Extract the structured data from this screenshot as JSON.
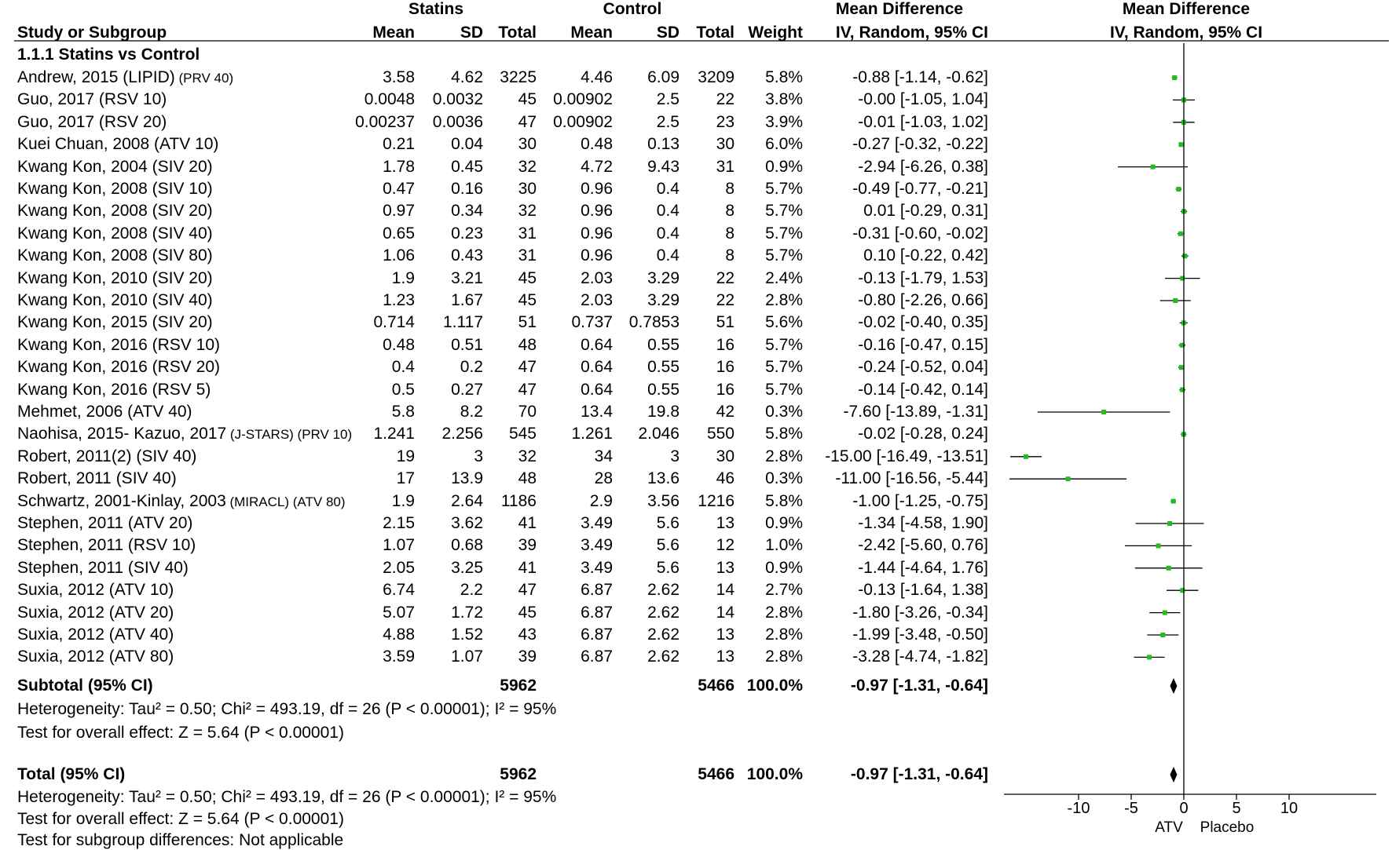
{
  "chart_data": {
    "type": "forest",
    "headers": {
      "statins_group": "Statins",
      "control_group": "Control",
      "md_group": "Mean Difference",
      "md_plot_group": "Mean Difference",
      "study": "Study or Subgroup",
      "mean": "Mean",
      "sd": "SD",
      "total": "Total",
      "weight": "Weight",
      "ci": "IV, Random, 95% CI",
      "plot_ci": "IV, Random, 95% CI"
    },
    "subgroup_title": "1.1.1 Statins vs Control",
    "studies": [
      {
        "name": "Andrew, 2015 (LIPID)",
        "tag": "(PRV 40)",
        "s_mean": "3.58",
        "s_sd": "4.62",
        "s_total": "3225",
        "c_mean": "4.46",
        "c_sd": "6.09",
        "c_total": "3209",
        "weight": "5.8%",
        "ci_text": "-0.88 [-1.14, -0.62]",
        "md": -0.88,
        "lo": -1.14,
        "hi": -0.62
      },
      {
        "name": "Guo, 2017 (RSV 10)",
        "tag": "",
        "s_mean": "0.0048",
        "s_sd": "0.0032",
        "s_total": "45",
        "c_mean": "0.00902",
        "c_sd": "2.5",
        "c_total": "22",
        "weight": "3.8%",
        "ci_text": "-0.00 [-1.05, 1.04]",
        "md": 0.0,
        "lo": -1.05,
        "hi": 1.04
      },
      {
        "name": "Guo, 2017 (RSV 20)",
        "tag": "",
        "s_mean": "0.00237",
        "s_sd": "0.0036",
        "s_total": "47",
        "c_mean": "0.00902",
        "c_sd": "2.5",
        "c_total": "23",
        "weight": "3.9%",
        "ci_text": "-0.01 [-1.03, 1.02]",
        "md": -0.01,
        "lo": -1.03,
        "hi": 1.02
      },
      {
        "name": "Kuei Chuan, 2008 (ATV 10)",
        "tag": "",
        "s_mean": "0.21",
        "s_sd": "0.04",
        "s_total": "30",
        "c_mean": "0.48",
        "c_sd": "0.13",
        "c_total": "30",
        "weight": "6.0%",
        "ci_text": "-0.27 [-0.32, -0.22]",
        "md": -0.27,
        "lo": -0.32,
        "hi": -0.22
      },
      {
        "name": "Kwang Kon, 2004 (SIV 20)",
        "tag": "",
        "s_mean": "1.78",
        "s_sd": "0.45",
        "s_total": "32",
        "c_mean": "4.72",
        "c_sd": "9.43",
        "c_total": "31",
        "weight": "0.9%",
        "ci_text": "-2.94 [-6.26, 0.38]",
        "md": -2.94,
        "lo": -6.26,
        "hi": 0.38
      },
      {
        "name": "Kwang Kon, 2008 (SIV 10)",
        "tag": "",
        "s_mean": "0.47",
        "s_sd": "0.16",
        "s_total": "30",
        "c_mean": "0.96",
        "c_sd": "0.4",
        "c_total": "8",
        "weight": "5.7%",
        "ci_text": "-0.49 [-0.77, -0.21]",
        "md": -0.49,
        "lo": -0.77,
        "hi": -0.21
      },
      {
        "name": "Kwang Kon, 2008 (SIV 20)",
        "tag": "",
        "s_mean": "0.97",
        "s_sd": "0.34",
        "s_total": "32",
        "c_mean": "0.96",
        "c_sd": "0.4",
        "c_total": "8",
        "weight": "5.7%",
        "ci_text": "0.01 [-0.29, 0.31]",
        "md": 0.01,
        "lo": -0.29,
        "hi": 0.31
      },
      {
        "name": "Kwang Kon, 2008 (SIV 40)",
        "tag": "",
        "s_mean": "0.65",
        "s_sd": "0.23",
        "s_total": "31",
        "c_mean": "0.96",
        "c_sd": "0.4",
        "c_total": "8",
        "weight": "5.7%",
        "ci_text": "-0.31 [-0.60, -0.02]",
        "md": -0.31,
        "lo": -0.6,
        "hi": -0.02
      },
      {
        "name": "Kwang Kon, 2008 (SIV 80)",
        "tag": "",
        "s_mean": "1.06",
        "s_sd": "0.43",
        "s_total": "31",
        "c_mean": "0.96",
        "c_sd": "0.4",
        "c_total": "8",
        "weight": "5.7%",
        "ci_text": "0.10 [-0.22, 0.42]",
        "md": 0.1,
        "lo": -0.22,
        "hi": 0.42
      },
      {
        "name": "Kwang Kon, 2010 (SIV 20)",
        "tag": "",
        "s_mean": "1.9",
        "s_sd": "3.21",
        "s_total": "45",
        "c_mean": "2.03",
        "c_sd": "3.29",
        "c_total": "22",
        "weight": "2.4%",
        "ci_text": "-0.13 [-1.79, 1.53]",
        "md": -0.13,
        "lo": -1.79,
        "hi": 1.53
      },
      {
        "name": "Kwang Kon, 2010 (SIV 40)",
        "tag": "",
        "s_mean": "1.23",
        "s_sd": "1.67",
        "s_total": "45",
        "c_mean": "2.03",
        "c_sd": "3.29",
        "c_total": "22",
        "weight": "2.8%",
        "ci_text": "-0.80 [-2.26, 0.66]",
        "md": -0.8,
        "lo": -2.26,
        "hi": 0.66
      },
      {
        "name": "Kwang Kon, 2015 (SIV 20)",
        "tag": "",
        "s_mean": "0.714",
        "s_sd": "1.117",
        "s_total": "51",
        "c_mean": "0.737",
        "c_sd": "0.7853",
        "c_total": "51",
        "weight": "5.6%",
        "ci_text": "-0.02 [-0.40, 0.35]",
        "md": -0.02,
        "lo": -0.4,
        "hi": 0.35
      },
      {
        "name": "Kwang Kon, 2016 (RSV 10)",
        "tag": "",
        "s_mean": "0.48",
        "s_sd": "0.51",
        "s_total": "48",
        "c_mean": "0.64",
        "c_sd": "0.55",
        "c_total": "16",
        "weight": "5.7%",
        "ci_text": "-0.16 [-0.47, 0.15]",
        "md": -0.16,
        "lo": -0.47,
        "hi": 0.15
      },
      {
        "name": "Kwang Kon, 2016 (RSV 20)",
        "tag": "",
        "s_mean": "0.4",
        "s_sd": "0.2",
        "s_total": "47",
        "c_mean": "0.64",
        "c_sd": "0.55",
        "c_total": "16",
        "weight": "5.7%",
        "ci_text": "-0.24 [-0.52, 0.04]",
        "md": -0.24,
        "lo": -0.52,
        "hi": 0.04
      },
      {
        "name": "Kwang Kon, 2016 (RSV 5)",
        "tag": "",
        "s_mean": "0.5",
        "s_sd": "0.27",
        "s_total": "47",
        "c_mean": "0.64",
        "c_sd": "0.55",
        "c_total": "16",
        "weight": "5.7%",
        "ci_text": "-0.14 [-0.42, 0.14]",
        "md": -0.14,
        "lo": -0.42,
        "hi": 0.14
      },
      {
        "name": "Mehmet, 2006 (ATV 40)",
        "tag": "",
        "s_mean": "5.8",
        "s_sd": "8.2",
        "s_total": "70",
        "c_mean": "13.4",
        "c_sd": "19.8",
        "c_total": "42",
        "weight": "0.3%",
        "ci_text": "-7.60 [-13.89, -1.31]",
        "md": -7.6,
        "lo": -13.89,
        "hi": -1.31
      },
      {
        "name": "Naohisa, 2015- Kazuo, 2017",
        "tag": "(J-STARS) (PRV 10)",
        "s_mean": "1.241",
        "s_sd": "2.256",
        "s_total": "545",
        "c_mean": "1.261",
        "c_sd": "2.046",
        "c_total": "550",
        "weight": "5.8%",
        "ci_text": "-0.02 [-0.28, 0.24]",
        "md": -0.02,
        "lo": -0.28,
        "hi": 0.24
      },
      {
        "name": "Robert, 2011(2) (SIV 40)",
        "tag": "",
        "s_mean": "19",
        "s_sd": "3",
        "s_total": "32",
        "c_mean": "34",
        "c_sd": "3",
        "c_total": "30",
        "weight": "2.8%",
        "ci_text": "-15.00 [-16.49, -13.51]",
        "md": -15.0,
        "lo": -16.49,
        "hi": -13.51
      },
      {
        "name": "Robert, 2011 (SIV 40)",
        "tag": "",
        "s_mean": "17",
        "s_sd": "13.9",
        "s_total": "48",
        "c_mean": "28",
        "c_sd": "13.6",
        "c_total": "46",
        "weight": "0.3%",
        "ci_text": "-11.00 [-16.56, -5.44]",
        "md": -11.0,
        "lo": -16.56,
        "hi": -5.44
      },
      {
        "name": "Schwartz, 2001-Kinlay, 2003",
        "tag": "(MIRACL) (ATV 80)",
        "s_mean": "1.9",
        "s_sd": "2.64",
        "s_total": "1186",
        "c_mean": "2.9",
        "c_sd": "3.56",
        "c_total": "1216",
        "weight": "5.8%",
        "ci_text": "-1.00 [-1.25, -0.75]",
        "md": -1.0,
        "lo": -1.25,
        "hi": -0.75
      },
      {
        "name": "Stephen, 2011 (ATV 20)",
        "tag": "",
        "s_mean": "2.15",
        "s_sd": "3.62",
        "s_total": "41",
        "c_mean": "3.49",
        "c_sd": "5.6",
        "c_total": "13",
        "weight": "0.9%",
        "ci_text": "-1.34 [-4.58, 1.90]",
        "md": -1.34,
        "lo": -4.58,
        "hi": 1.9
      },
      {
        "name": "Stephen, 2011 (RSV 10)",
        "tag": "",
        "s_mean": "1.07",
        "s_sd": "0.68",
        "s_total": "39",
        "c_mean": "3.49",
        "c_sd": "5.6",
        "c_total": "12",
        "weight": "1.0%",
        "ci_text": "-2.42 [-5.60, 0.76]",
        "md": -2.42,
        "lo": -5.6,
        "hi": 0.76
      },
      {
        "name": "Stephen, 2011 (SIV 40)",
        "tag": "",
        "s_mean": "2.05",
        "s_sd": "3.25",
        "s_total": "41",
        "c_mean": "3.49",
        "c_sd": "5.6",
        "c_total": "13",
        "weight": "0.9%",
        "ci_text": "-1.44 [-4.64, 1.76]",
        "md": -1.44,
        "lo": -4.64,
        "hi": 1.76
      },
      {
        "name": "Suxia, 2012 (ATV 10)",
        "tag": "",
        "s_mean": "6.74",
        "s_sd": "2.2",
        "s_total": "47",
        "c_mean": "6.87",
        "c_sd": "2.62",
        "c_total": "14",
        "weight": "2.7%",
        "ci_text": "-0.13 [-1.64, 1.38]",
        "md": -0.13,
        "lo": -1.64,
        "hi": 1.38
      },
      {
        "name": "Suxia, 2012 (ATV 20)",
        "tag": "",
        "s_mean": "5.07",
        "s_sd": "1.72",
        "s_total": "45",
        "c_mean": "6.87",
        "c_sd": "2.62",
        "c_total": "14",
        "weight": "2.8%",
        "ci_text": "-1.80 [-3.26, -0.34]",
        "md": -1.8,
        "lo": -3.26,
        "hi": -0.34
      },
      {
        "name": "Suxia, 2012 (ATV 40)",
        "tag": "",
        "s_mean": "4.88",
        "s_sd": "1.52",
        "s_total": "43",
        "c_mean": "6.87",
        "c_sd": "2.62",
        "c_total": "13",
        "weight": "2.8%",
        "ci_text": "-1.99 [-3.48, -0.50]",
        "md": -1.99,
        "lo": -3.48,
        "hi": -0.5
      },
      {
        "name": "Suxia, 2012 (ATV 80)",
        "tag": "",
        "s_mean": "3.59",
        "s_sd": "1.07",
        "s_total": "39",
        "c_mean": "6.87",
        "c_sd": "2.62",
        "c_total": "13",
        "weight": "2.8%",
        "ci_text": "-3.28 [-4.74, -1.82]",
        "md": -3.28,
        "lo": -4.74,
        "hi": -1.82
      }
    ],
    "subtotal": {
      "label": "Subtotal (95% CI)",
      "s_total": "5962",
      "c_total": "5466",
      "weight": "100.0%",
      "ci_text": "-0.97 [-1.31, -0.64]",
      "md": -0.97,
      "lo": -1.31,
      "hi": -0.64
    },
    "subgroup_heterogeneity": "Heterogeneity: Tau² = 0.50; Chi² = 493.19, df = 26 (P < 0.00001); I² = 95%",
    "subgroup_overall": "Test for overall effect: Z = 5.64 (P < 0.00001)",
    "total": {
      "label": "Total (95% CI)",
      "s_total": "5962",
      "c_total": "5466",
      "weight": "100.0%",
      "ci_text": "-0.97 [-1.31, -0.64]",
      "md": -0.97,
      "lo": -1.31,
      "hi": -0.64
    },
    "total_heterogeneity": "Heterogeneity: Tau² = 0.50; Chi² = 493.19, df = 26 (P < 0.00001); I² = 95%",
    "total_overall": "Test for overall effect: Z = 5.64 (P < 0.00001)",
    "subgroup_diff": "Test for subgroup differences: Not applicable",
    "axis": {
      "ticks": [
        -10,
        -5,
        0,
        5,
        10
      ],
      "tick_labels": [
        "-10",
        "-5",
        "0",
        "5",
        "10"
      ],
      "range": [
        -17,
        17
      ],
      "left_label": "ATV",
      "right_label": "Placebo"
    },
    "colors": {
      "marker": "#22bb22",
      "line": "#000000"
    }
  }
}
